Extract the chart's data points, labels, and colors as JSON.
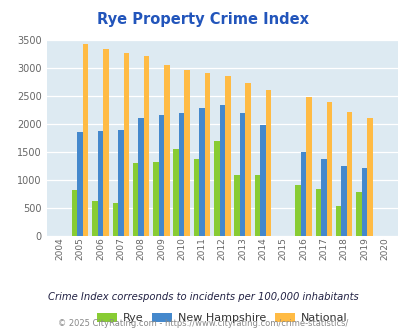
{
  "title": "Rye Property Crime Index",
  "years": [
    2004,
    2005,
    2006,
    2007,
    2008,
    2009,
    2010,
    2011,
    2012,
    2013,
    2014,
    2015,
    2016,
    2017,
    2018,
    2019,
    2020
  ],
  "rye": [
    0,
    820,
    625,
    590,
    1300,
    1310,
    1555,
    1380,
    1700,
    1090,
    1090,
    0,
    910,
    845,
    530,
    775,
    0
  ],
  "new_hampshire": [
    0,
    1850,
    1870,
    1895,
    2095,
    2155,
    2185,
    2280,
    2330,
    2185,
    1975,
    0,
    1505,
    1375,
    1245,
    1215,
    0
  ],
  "national": [
    0,
    3420,
    3335,
    3270,
    3215,
    3050,
    2960,
    2905,
    2860,
    2720,
    2600,
    0,
    2475,
    2380,
    2210,
    2105,
    0
  ],
  "rye_color": "#88cc33",
  "nh_color": "#4488cc",
  "national_color": "#ffbb44",
  "bg_color": "#ddeaf2",
  "title_color": "#2255bb",
  "subtitle": "Crime Index corresponds to incidents per 100,000 inhabitants",
  "footer": "© 2025 CityRating.com - https://www.cityrating.com/crime-statistics/",
  "ylim": [
    0,
    3500
  ],
  "bar_width": 0.27,
  "figsize": [
    4.06,
    3.3
  ],
  "dpi": 100
}
